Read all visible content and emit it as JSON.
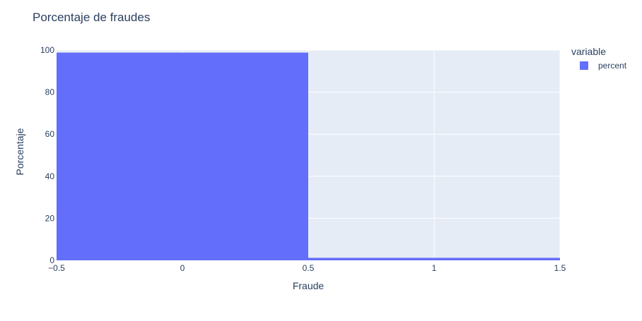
{
  "chart_data": {
    "type": "bar",
    "title": "Porcentaje de fraudes",
    "xlabel": "Fraude",
    "ylabel": "Porcentaje",
    "x": [
      0,
      1
    ],
    "bar_width": 1,
    "xlim": [
      -0.5,
      1.5
    ],
    "ylim": [
      0,
      100
    ],
    "x_ticks": [
      -0.5,
      0,
      0.5,
      1,
      1.5
    ],
    "x_tick_labels": [
      "−0.5",
      "0",
      "0.5",
      "1",
      "1.5"
    ],
    "y_ticks": [
      0,
      20,
      40,
      60,
      80,
      100
    ],
    "y_tick_labels": [
      "0",
      "20",
      "40",
      "60",
      "80",
      "100"
    ],
    "legend": {
      "title": "variable",
      "position": "top-right"
    },
    "series": [
      {
        "name": "percent",
        "values": [
          98.8,
          1.2
        ],
        "color": "#636efa"
      }
    ],
    "grid": true,
    "plot_background": "#e5ecf6"
  }
}
